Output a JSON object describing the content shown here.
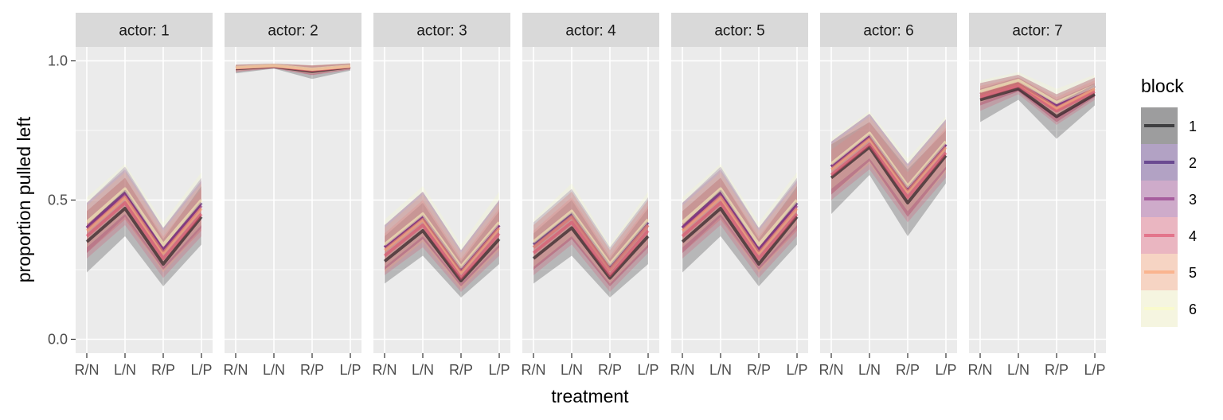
{
  "chart_data": {
    "type": "area",
    "facet_label": "actor",
    "facets": [
      {
        "label": "actor: 1",
        "actor": 1
      },
      {
        "label": "actor: 2",
        "actor": 2
      },
      {
        "label": "actor: 3",
        "actor": 3
      },
      {
        "label": "actor: 4",
        "actor": 4
      },
      {
        "label": "actor: 5",
        "actor": 5
      },
      {
        "label": "actor: 6",
        "actor": 6
      },
      {
        "label": "actor: 7",
        "actor": 7
      }
    ],
    "categories": [
      "R/N",
      "L/N",
      "R/P",
      "L/P"
    ],
    "xlabel": "treatment",
    "ylabel": "proportion pulled left",
    "ylim": [
      -0.05,
      1.05
    ],
    "yticks": [
      0.0,
      0.5,
      1.0
    ],
    "ytick_labels": [
      "0.0",
      "0.5",
      "1.0"
    ],
    "grid": true,
    "legend": {
      "title": "block",
      "position": "right",
      "items": [
        {
          "label": "1",
          "color": "#000004"
        },
        {
          "label": "2",
          "color": "#3B0F70"
        },
        {
          "label": "3",
          "color": "#8C2981"
        },
        {
          "label": "4",
          "color": "#DE4968"
        },
        {
          "label": "5",
          "color": "#FE9F6D"
        },
        {
          "label": "6",
          "color": "#FCFDBF"
        }
      ]
    },
    "series_by_actor": [
      [
        {
          "block": "1",
          "mean": [
            0.35,
            0.47,
            0.27,
            0.44
          ],
          "lower": [
            0.24,
            0.37,
            0.19,
            0.34
          ],
          "upper": [
            0.46,
            0.58,
            0.36,
            0.55
          ]
        },
        {
          "block": "2",
          "mean": [
            0.4,
            0.53,
            0.32,
            0.49
          ],
          "lower": [
            0.31,
            0.44,
            0.25,
            0.4
          ],
          "upper": [
            0.49,
            0.62,
            0.4,
            0.58
          ]
        },
        {
          "block": "3",
          "mean": [
            0.4,
            0.52,
            0.32,
            0.48
          ],
          "lower": [
            0.31,
            0.43,
            0.25,
            0.39
          ],
          "upper": [
            0.49,
            0.61,
            0.4,
            0.57
          ]
        },
        {
          "block": "4",
          "mean": [
            0.37,
            0.49,
            0.29,
            0.45
          ],
          "lower": [
            0.29,
            0.41,
            0.22,
            0.37
          ],
          "upper": [
            0.46,
            0.58,
            0.37,
            0.54
          ]
        },
        {
          "block": "5",
          "mean": [
            0.39,
            0.51,
            0.31,
            0.47
          ],
          "lower": [
            0.31,
            0.43,
            0.24,
            0.39
          ],
          "upper": [
            0.48,
            0.6,
            0.39,
            0.56
          ]
        },
        {
          "block": "6",
          "mean": [
            0.42,
            0.54,
            0.34,
            0.5
          ],
          "lower": [
            0.33,
            0.45,
            0.26,
            0.41
          ],
          "upper": [
            0.51,
            0.63,
            0.42,
            0.6
          ]
        }
      ],
      [
        {
          "block": "1",
          "mean": [
            0.972,
            0.98,
            0.962,
            0.978
          ],
          "lower": [
            0.955,
            0.972,
            0.935,
            0.965
          ],
          "upper": [
            0.985,
            0.989,
            0.982,
            0.99
          ]
        },
        {
          "block": "2",
          "mean": [
            0.975,
            0.982,
            0.968,
            0.98
          ],
          "lower": [
            0.962,
            0.974,
            0.95,
            0.97
          ],
          "upper": [
            0.986,
            0.99,
            0.984,
            0.991
          ]
        },
        {
          "block": "3",
          "mean": [
            0.975,
            0.982,
            0.968,
            0.98
          ],
          "lower": [
            0.962,
            0.974,
            0.95,
            0.97
          ],
          "upper": [
            0.986,
            0.99,
            0.984,
            0.991
          ]
        },
        {
          "block": "4",
          "mean": [
            0.974,
            0.981,
            0.966,
            0.979
          ],
          "lower": [
            0.96,
            0.973,
            0.948,
            0.968
          ],
          "upper": [
            0.985,
            0.989,
            0.983,
            0.99
          ]
        },
        {
          "block": "5",
          "mean": [
            0.975,
            0.982,
            0.968,
            0.98
          ],
          "lower": [
            0.962,
            0.974,
            0.95,
            0.97
          ],
          "upper": [
            0.986,
            0.99,
            0.984,
            0.991
          ]
        },
        {
          "block": "6",
          "mean": [
            0.976,
            0.983,
            0.97,
            0.981
          ],
          "lower": [
            0.963,
            0.975,
            0.952,
            0.971
          ],
          "upper": [
            0.987,
            0.991,
            0.985,
            0.992
          ]
        }
      ],
      [
        {
          "block": "1",
          "mean": [
            0.28,
            0.39,
            0.21,
            0.36
          ],
          "lower": [
            0.2,
            0.3,
            0.15,
            0.27
          ],
          "upper": [
            0.37,
            0.49,
            0.28,
            0.46
          ]
        },
        {
          "block": "2",
          "mean": [
            0.33,
            0.44,
            0.25,
            0.41
          ],
          "lower": [
            0.25,
            0.36,
            0.19,
            0.33
          ],
          "upper": [
            0.41,
            0.53,
            0.32,
            0.5
          ]
        },
        {
          "block": "3",
          "mean": [
            0.33,
            0.44,
            0.25,
            0.41
          ],
          "lower": [
            0.25,
            0.36,
            0.19,
            0.33
          ],
          "upper": [
            0.41,
            0.53,
            0.32,
            0.5
          ]
        },
        {
          "block": "4",
          "mean": [
            0.3,
            0.41,
            0.22,
            0.38
          ],
          "lower": [
            0.23,
            0.33,
            0.17,
            0.3
          ],
          "upper": [
            0.38,
            0.5,
            0.29,
            0.47
          ]
        },
        {
          "block": "5",
          "mean": [
            0.32,
            0.43,
            0.24,
            0.4
          ],
          "lower": [
            0.24,
            0.35,
            0.18,
            0.32
          ],
          "upper": [
            0.4,
            0.52,
            0.31,
            0.49
          ]
        },
        {
          "block": "6",
          "mean": [
            0.34,
            0.45,
            0.26,
            0.42
          ],
          "lower": [
            0.26,
            0.37,
            0.2,
            0.34
          ],
          "upper": [
            0.43,
            0.55,
            0.34,
            0.53
          ]
        }
      ],
      [
        {
          "block": "1",
          "mean": [
            0.29,
            0.4,
            0.22,
            0.37
          ],
          "lower": [
            0.2,
            0.3,
            0.15,
            0.27
          ],
          "upper": [
            0.38,
            0.5,
            0.29,
            0.47
          ]
        },
        {
          "block": "2",
          "mean": [
            0.34,
            0.45,
            0.26,
            0.42
          ],
          "lower": [
            0.25,
            0.36,
            0.19,
            0.33
          ],
          "upper": [
            0.42,
            0.54,
            0.33,
            0.51
          ]
        },
        {
          "block": "3",
          "mean": [
            0.33,
            0.44,
            0.25,
            0.41
          ],
          "lower": [
            0.25,
            0.36,
            0.19,
            0.33
          ],
          "upper": [
            0.41,
            0.53,
            0.32,
            0.5
          ]
        },
        {
          "block": "4",
          "mean": [
            0.31,
            0.42,
            0.23,
            0.39
          ],
          "lower": [
            0.23,
            0.34,
            0.17,
            0.31
          ],
          "upper": [
            0.39,
            0.51,
            0.3,
            0.48
          ]
        },
        {
          "block": "5",
          "mean": [
            0.33,
            0.44,
            0.25,
            0.41
          ],
          "lower": [
            0.25,
            0.36,
            0.19,
            0.33
          ],
          "upper": [
            0.41,
            0.53,
            0.32,
            0.5
          ]
        },
        {
          "block": "6",
          "mean": [
            0.35,
            0.46,
            0.27,
            0.43
          ],
          "lower": [
            0.26,
            0.37,
            0.2,
            0.34
          ],
          "upper": [
            0.43,
            0.56,
            0.34,
            0.53
          ]
        }
      ],
      [
        {
          "block": "1",
          "mean": [
            0.35,
            0.47,
            0.27,
            0.44
          ],
          "lower": [
            0.24,
            0.37,
            0.19,
            0.34
          ],
          "upper": [
            0.46,
            0.58,
            0.36,
            0.55
          ]
        },
        {
          "block": "2",
          "mean": [
            0.4,
            0.53,
            0.32,
            0.49
          ],
          "lower": [
            0.31,
            0.44,
            0.25,
            0.4
          ],
          "upper": [
            0.49,
            0.62,
            0.4,
            0.58
          ]
        },
        {
          "block": "3",
          "mean": [
            0.4,
            0.52,
            0.32,
            0.48
          ],
          "lower": [
            0.31,
            0.43,
            0.25,
            0.39
          ],
          "upper": [
            0.49,
            0.61,
            0.4,
            0.57
          ]
        },
        {
          "block": "4",
          "mean": [
            0.37,
            0.49,
            0.29,
            0.45
          ],
          "lower": [
            0.29,
            0.41,
            0.22,
            0.37
          ],
          "upper": [
            0.46,
            0.58,
            0.37,
            0.54
          ]
        },
        {
          "block": "5",
          "mean": [
            0.39,
            0.51,
            0.31,
            0.47
          ],
          "lower": [
            0.31,
            0.43,
            0.24,
            0.39
          ],
          "upper": [
            0.48,
            0.6,
            0.39,
            0.56
          ]
        },
        {
          "block": "6",
          "mean": [
            0.42,
            0.54,
            0.34,
            0.5
          ],
          "lower": [
            0.33,
            0.45,
            0.26,
            0.41
          ],
          "upper": [
            0.51,
            0.63,
            0.42,
            0.6
          ]
        }
      ],
      [
        {
          "block": "1",
          "mean": [
            0.58,
            0.69,
            0.49,
            0.66
          ],
          "lower": [
            0.45,
            0.59,
            0.37,
            0.56
          ],
          "upper": [
            0.7,
            0.78,
            0.61,
            0.75
          ]
        },
        {
          "block": "2",
          "mean": [
            0.62,
            0.73,
            0.54,
            0.7
          ],
          "lower": [
            0.52,
            0.64,
            0.44,
            0.61
          ],
          "upper": [
            0.71,
            0.81,
            0.63,
            0.79
          ]
        },
        {
          "block": "3",
          "mean": [
            0.62,
            0.73,
            0.54,
            0.7
          ],
          "lower": [
            0.52,
            0.64,
            0.44,
            0.61
          ],
          "upper": [
            0.71,
            0.81,
            0.63,
            0.79
          ]
        },
        {
          "block": "4",
          "mean": [
            0.59,
            0.7,
            0.51,
            0.67
          ],
          "lower": [
            0.5,
            0.61,
            0.42,
            0.58
          ],
          "upper": [
            0.68,
            0.78,
            0.6,
            0.76
          ]
        },
        {
          "block": "5",
          "mean": [
            0.61,
            0.72,
            0.53,
            0.69
          ],
          "lower": [
            0.52,
            0.63,
            0.44,
            0.6
          ],
          "upper": [
            0.7,
            0.8,
            0.62,
            0.78
          ]
        },
        {
          "block": "6",
          "mean": [
            0.63,
            0.74,
            0.55,
            0.71
          ],
          "lower": [
            0.54,
            0.65,
            0.46,
            0.62
          ],
          "upper": [
            0.72,
            0.82,
            0.65,
            0.8
          ]
        }
      ],
      [
        {
          "block": "1",
          "mean": [
            0.86,
            0.9,
            0.8,
            0.88
          ],
          "lower": [
            0.78,
            0.86,
            0.72,
            0.84
          ],
          "upper": [
            0.9,
            0.94,
            0.86,
            0.92
          ]
        },
        {
          "block": "2",
          "mean": [
            0.88,
            0.92,
            0.84,
            0.91
          ],
          "lower": [
            0.84,
            0.89,
            0.78,
            0.87
          ],
          "upper": [
            0.92,
            0.95,
            0.88,
            0.94
          ]
        },
        {
          "block": "3",
          "mean": [
            0.88,
            0.92,
            0.84,
            0.91
          ],
          "lower": [
            0.84,
            0.89,
            0.78,
            0.87
          ],
          "upper": [
            0.92,
            0.95,
            0.88,
            0.94
          ]
        },
        {
          "block": "4",
          "mean": [
            0.87,
            0.91,
            0.82,
            0.89
          ],
          "lower": [
            0.82,
            0.88,
            0.77,
            0.86
          ],
          "upper": [
            0.91,
            0.94,
            0.87,
            0.93
          ]
        },
        {
          "block": "5",
          "mean": [
            0.88,
            0.92,
            0.83,
            0.9
          ],
          "lower": [
            0.84,
            0.89,
            0.78,
            0.87
          ],
          "upper": [
            0.92,
            0.95,
            0.88,
            0.94
          ]
        },
        {
          "block": "6",
          "mean": [
            0.89,
            0.93,
            0.85,
            0.91
          ],
          "lower": [
            0.85,
            0.9,
            0.8,
            0.88
          ],
          "upper": [
            0.93,
            0.96,
            0.9,
            0.95
          ]
        }
      ]
    ]
  }
}
